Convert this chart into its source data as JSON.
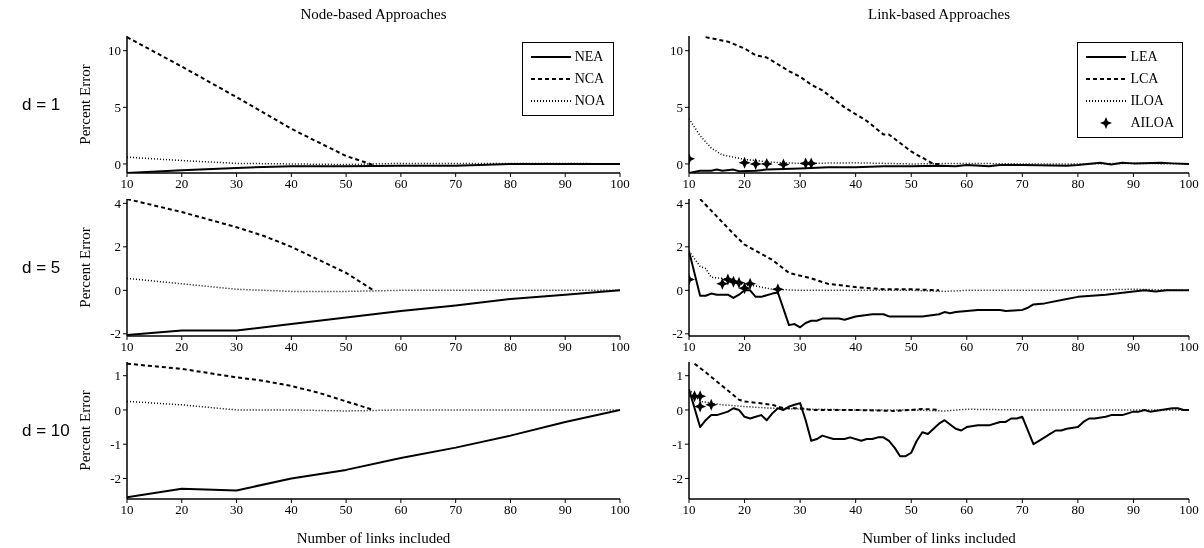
{
  "chart_data": [
    {
      "type": "line",
      "title": "Node-based Approaches",
      "ylabel": "Percent Error",
      "annotations": [
        "d = 1"
      ],
      "xlim": [
        10,
        100
      ],
      "xticks": [
        10,
        20,
        30,
        40,
        50,
        60,
        70,
        80,
        90,
        100
      ],
      "ylim": [
        -0.8,
        11.3
      ],
      "yticks": [
        0,
        5,
        10
      ],
      "legend": "top right",
      "series": [
        {
          "name": "NEA",
          "color": "#000000",
          "line_style": "solid",
          "x": [
            10,
            20,
            30,
            40,
            50,
            60,
            70,
            80,
            90,
            100
          ],
          "values": [
            -0.8,
            -0.55,
            -0.35,
            -0.2,
            -0.2,
            -0.15,
            -0.15,
            0,
            0,
            0
          ]
        },
        {
          "name": "NCA",
          "color": "#000000",
          "line_style": "dashed",
          "x": [
            10,
            20,
            30,
            40,
            50,
            55
          ],
          "values": [
            11.2,
            8.6,
            5.9,
            3.1,
            0.7,
            -0.1
          ]
        },
        {
          "name": "NOA",
          "color": "#000000",
          "line_style": "dotted",
          "x": [
            10,
            20,
            30,
            40,
            50,
            60,
            70,
            80,
            90,
            100
          ],
          "values": [
            0.6,
            0.3,
            0.05,
            0,
            -0.05,
            0.05,
            0.05,
            0.05,
            0.05,
            0
          ]
        }
      ]
    },
    {
      "type": "line",
      "title": "Link-based Approaches",
      "xlim": [
        10,
        100
      ],
      "xticks": [
        10,
        20,
        30,
        40,
        50,
        60,
        70,
        80,
        90,
        100
      ],
      "ylim": [
        -0.8,
        11.3
      ],
      "yticks": [
        0,
        5,
        10
      ],
      "legend": "top right",
      "series": [
        {
          "name": "LEA",
          "color": "#000000",
          "line_style": "solid",
          "x": [
            10,
            12,
            14,
            15,
            16,
            18,
            19,
            22,
            24,
            30,
            35,
            40,
            45,
            50,
            55,
            58,
            60,
            64,
            66,
            70,
            78,
            80,
            84,
            86,
            88,
            90,
            95,
            97,
            100
          ],
          "values": [
            -0.8,
            -0.6,
            -0.6,
            -0.5,
            -0.6,
            -0.5,
            -0.65,
            -0.6,
            -0.5,
            -0.4,
            -0.3,
            -0.3,
            -0.2,
            -0.2,
            -0.15,
            -0.2,
            -0.1,
            -0.2,
            -0.1,
            -0.1,
            -0.15,
            -0.1,
            0.1,
            -0.05,
            0.1,
            0.05,
            0.1,
            0.05,
            0
          ]
        },
        {
          "name": "LCA",
          "color": "#000000",
          "line_style": "dashed",
          "x": [
            13,
            17,
            20,
            22,
            24,
            28,
            30,
            32,
            34,
            38,
            42,
            45,
            46,
            50,
            54,
            55
          ],
          "values": [
            11.2,
            10.8,
            10.2,
            9.6,
            9.4,
            8.2,
            7.7,
            7.0,
            6.5,
            5.0,
            3.8,
            2.6,
            2.6,
            1.1,
            0,
            0
          ]
        },
        {
          "name": "ILOA",
          "color": "#000000",
          "line_style": "dotted",
          "x": [
            10,
            12,
            14,
            16,
            18,
            20,
            25,
            30,
            40,
            50,
            60,
            70,
            80,
            90,
            100
          ],
          "values": [
            4.0,
            2.5,
            1.4,
            0.8,
            0.6,
            0.4,
            0.15,
            0.05,
            0.1,
            0,
            0.05,
            0,
            0,
            0.05,
            0
          ]
        },
        {
          "name": "AILOA",
          "type": "scatter",
          "marker": "star",
          "color": "#000000",
          "x": [
            10,
            20,
            22,
            24,
            27,
            31,
            32
          ],
          "values": [
            0.45,
            0.1,
            0,
            0,
            -0.05,
            0.05,
            0.05
          ]
        }
      ]
    },
    {
      "type": "line",
      "ylabel": "Percent Error",
      "annotations": [
        "d = 5"
      ],
      "xlim": [
        10,
        100
      ],
      "xticks": [
        10,
        20,
        30,
        40,
        50,
        60,
        70,
        80,
        90,
        100
      ],
      "ylim": [
        -2.1,
        4.2
      ],
      "yticks": [
        -2,
        0,
        2,
        4
      ],
      "series": [
        {
          "color": "#000000",
          "line_style": "solid",
          "x": [
            10,
            20,
            30,
            40,
            50,
            60,
            70,
            80,
            90,
            100
          ],
          "values": [
            -2.05,
            -1.85,
            -1.85,
            -1.55,
            -1.25,
            -0.95,
            -0.7,
            -0.4,
            -0.2,
            0
          ]
        },
        {
          "color": "#000000",
          "line_style": "dashed",
          "x": [
            10,
            20,
            30,
            35,
            40,
            45,
            50,
            55
          ],
          "values": [
            4.2,
            3.6,
            2.9,
            2.5,
            2.0,
            1.4,
            0.8,
            0
          ]
        },
        {
          "color": "#000000",
          "line_style": "dotted",
          "x": [
            10,
            20,
            30,
            40,
            50,
            60,
            70,
            80,
            90,
            100
          ],
          "values": [
            0.55,
            0.3,
            0.05,
            -0.05,
            -0.05,
            0,
            0,
            0,
            0,
            0
          ]
        }
      ]
    },
    {
      "type": "line",
      "xlim": [
        10,
        100
      ],
      "xticks": [
        10,
        20,
        30,
        40,
        50,
        60,
        70,
        80,
        90,
        100
      ],
      "ylim": [
        -2.1,
        4.2
      ],
      "yticks": [
        -2,
        0,
        2,
        4
      ],
      "series": [
        {
          "color": "#000000",
          "line_style": "solid",
          "x": [
            10,
            12,
            13,
            14,
            15,
            17,
            18,
            19,
            20,
            21,
            22,
            23,
            25,
            26,
            28,
            29,
            30,
            31,
            32,
            33,
            34,
            37,
            38,
            40,
            43,
            45,
            46,
            50,
            52,
            55,
            56,
            57,
            58,
            60,
            62,
            66,
            67,
            70,
            71,
            72,
            74,
            78,
            80,
            85,
            90,
            92,
            94,
            96,
            98,
            100
          ],
          "values": [
            1.8,
            -0.25,
            -0.25,
            -0.15,
            -0.2,
            -0.2,
            -0.35,
            -0.2,
            0,
            0,
            -0.3,
            -0.3,
            -0.15,
            -0.1,
            -1.6,
            -1.55,
            -1.7,
            -1.5,
            -1.4,
            -1.4,
            -1.3,
            -1.3,
            -1.35,
            -1.2,
            -1.1,
            -1.1,
            -1.2,
            -1.2,
            -1.2,
            -1.1,
            -1.0,
            -1.05,
            -1.0,
            -0.95,
            -0.9,
            -0.9,
            -0.95,
            -0.9,
            -0.8,
            -0.65,
            -0.6,
            -0.4,
            -0.3,
            -0.2,
            -0.05,
            0,
            -0.05,
            0,
            0,
            0
          ]
        },
        {
          "color": "#000000",
          "line_style": "dashed",
          "x": [
            12,
            15,
            18,
            20,
            25,
            28,
            32,
            35,
            40,
            45,
            50,
            55
          ],
          "values": [
            4.2,
            3.4,
            2.6,
            2.1,
            1.4,
            0.8,
            0.55,
            0.3,
            0.15,
            0.05,
            0.05,
            0
          ]
        },
        {
          "color": "#000000",
          "line_style": "dotted",
          "x": [
            10,
            12,
            13,
            14,
            16,
            18,
            20,
            22,
            25,
            30,
            40,
            50,
            56,
            60,
            70,
            80,
            90,
            100
          ],
          "values": [
            1.8,
            1.1,
            1.0,
            0.6,
            0.55,
            0.4,
            0.25,
            0.2,
            0.05,
            0,
            0,
            0,
            -0.05,
            0,
            0,
            0,
            0.05,
            0
          ]
        },
        {
          "type": "scatter",
          "marker": "star",
          "color": "#000000",
          "x": [
            10,
            16,
            17,
            18,
            19,
            20,
            21,
            26
          ],
          "values": [
            0.5,
            0.3,
            0.5,
            0.4,
            0.35,
            0.1,
            0.3,
            0.05
          ]
        }
      ]
    },
    {
      "type": "line",
      "ylabel": "Percent Error",
      "xlabel": "Number of links included",
      "annotations": [
        "d = 10"
      ],
      "xlim": [
        10,
        100
      ],
      "xticks": [
        10,
        20,
        30,
        40,
        50,
        60,
        70,
        80,
        90,
        100
      ],
      "ylim": [
        -2.6,
        1.4
      ],
      "yticks": [
        -2,
        -1,
        0,
        1
      ],
      "series": [
        {
          "color": "#000000",
          "line_style": "solid",
          "x": [
            10,
            20,
            30,
            40,
            50,
            60,
            70,
            80,
            90,
            100
          ],
          "values": [
            -2.55,
            -2.3,
            -2.35,
            -2.0,
            -1.75,
            -1.4,
            -1.1,
            -0.75,
            -0.35,
            0
          ]
        },
        {
          "color": "#000000",
          "line_style": "dashed",
          "x": [
            10,
            20,
            30,
            35,
            40,
            45,
            50,
            55
          ],
          "values": [
            1.35,
            1.2,
            0.95,
            0.85,
            0.7,
            0.5,
            0.25,
            0
          ]
        },
        {
          "color": "#000000",
          "line_style": "dotted",
          "x": [
            10,
            20,
            30,
            40,
            50,
            60,
            70,
            80,
            90,
            100
          ],
          "values": [
            0.25,
            0.15,
            0,
            0,
            -0.03,
            0,
            0,
            0,
            0,
            0
          ]
        }
      ]
    },
    {
      "type": "line",
      "xlabel": "Number of links included",
      "xlim": [
        10,
        100
      ],
      "xticks": [
        10,
        20,
        30,
        40,
        50,
        60,
        70,
        80,
        90,
        100
      ],
      "ylim": [
        -2.6,
        1.4
      ],
      "yticks": [
        -2,
        -1,
        0,
        1
      ],
      "series": [
        {
          "color": "#000000",
          "line_style": "solid",
          "x": [
            10,
            12,
            13,
            14,
            15,
            16,
            17,
            18,
            19,
            20,
            21,
            22,
            23,
            24,
            25,
            26,
            27,
            28,
            29,
            30,
            31,
            32,
            33,
            34,
            35,
            36,
            38,
            39,
            41,
            42,
            43,
            44,
            45,
            46,
            47,
            48,
            49,
            50,
            51,
            52,
            53,
            55,
            56,
            58,
            59,
            60,
            62,
            64,
            66,
            67,
            68,
            69,
            70,
            72,
            73,
            75,
            76,
            77,
            78,
            80,
            81,
            82,
            83,
            85,
            86,
            88,
            90,
            91,
            92,
            93,
            95,
            97,
            98,
            99,
            100
          ],
          "values": [
            0.6,
            -0.5,
            -0.3,
            -0.15,
            -0.15,
            -0.1,
            -0.05,
            0.05,
            0,
            -0.2,
            -0.25,
            -0.2,
            -0.15,
            -0.3,
            -0.1,
            0.05,
            0,
            0.1,
            0.15,
            0.2,
            -0.3,
            -0.9,
            -0.85,
            -0.75,
            -0.8,
            -0.85,
            -0.85,
            -0.8,
            -0.9,
            -0.85,
            -0.85,
            -0.8,
            -0.8,
            -0.9,
            -1.1,
            -1.35,
            -1.35,
            -1.25,
            -0.9,
            -0.65,
            -0.7,
            -0.4,
            -0.3,
            -0.55,
            -0.6,
            -0.5,
            -0.45,
            -0.45,
            -0.35,
            -0.35,
            -0.25,
            -0.25,
            -0.2,
            -1.0,
            -0.9,
            -0.7,
            -0.6,
            -0.6,
            -0.55,
            -0.5,
            -0.35,
            -0.25,
            -0.25,
            -0.2,
            -0.15,
            -0.15,
            -0.05,
            -0.05,
            0,
            -0.05,
            0,
            0.05,
            0.05,
            0,
            0
          ]
        },
        {
          "color": "#000000",
          "line_style": "dashed",
          "x": [
            11,
            13,
            16,
            19,
            20,
            25,
            27,
            30,
            32,
            40,
            47,
            50,
            52,
            55
          ],
          "values": [
            1.35,
            1.1,
            0.7,
            0.3,
            0.25,
            0.15,
            0.05,
            0.05,
            0,
            0,
            -0.03,
            0,
            0.03,
            0
          ]
        },
        {
          "color": "#000000",
          "line_style": "dotted",
          "x": [
            10,
            12,
            14,
            16,
            20,
            25,
            30,
            40,
            50,
            56,
            60,
            70,
            80,
            90,
            100
          ],
          "values": [
            0.6,
            0.25,
            0.2,
            0.15,
            0.1,
            0.05,
            0.03,
            0,
            0,
            -0.03,
            0.02,
            0,
            0,
            0,
            0
          ]
        },
        {
          "type": "scatter",
          "marker": "star",
          "color": "#000000",
          "x": [
            11,
            12,
            12,
            14
          ],
          "values": [
            0.4,
            0.4,
            0.1,
            0.15
          ]
        }
      ]
    }
  ]
}
